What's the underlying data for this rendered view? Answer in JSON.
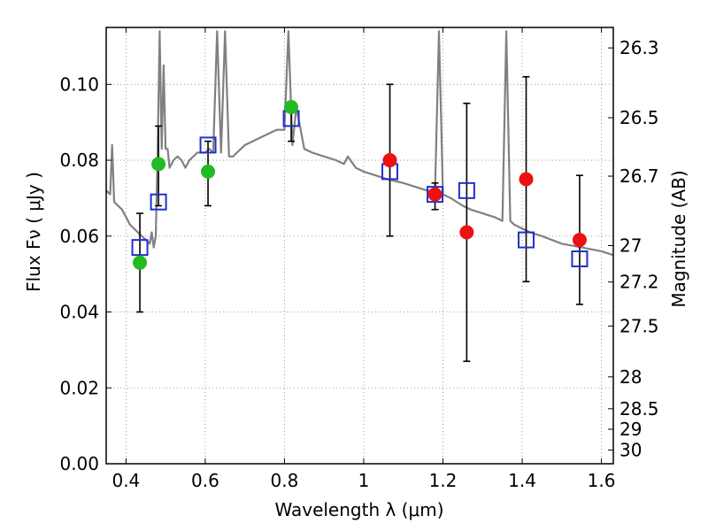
{
  "chart_data": {
    "type": "scatter",
    "xlabel": "Wavelength  λ (μm)",
    "ylabel": "Flux  Fν  ( μJy )",
    "y2label": "Magnitude (AB)",
    "xlim": [
      0.35,
      1.63
    ],
    "ylim": [
      0.0,
      0.115
    ],
    "grid": true,
    "x_ticks": [
      0.4,
      0.6,
      0.8,
      1.0,
      1.2,
      1.4,
      1.6
    ],
    "x_tick_labels": [
      "0.4",
      "0.6",
      "0.8",
      "1",
      "1.2",
      "1.4",
      "1.6"
    ],
    "y_ticks": [
      0.0,
      0.02,
      0.04,
      0.06,
      0.08,
      0.1
    ],
    "y_tick_labels": [
      "0.00",
      "0.02",
      "0.04",
      "0.06",
      "0.08",
      "0.10"
    ],
    "y2_ticks": [
      {
        "label": "26.3",
        "flux": 0.1096
      },
      {
        "label": "26.5",
        "flux": 0.0912
      },
      {
        "label": "26.7",
        "flux": 0.0758
      },
      {
        "label": "27",
        "flux": 0.0575
      },
      {
        "label": "27.2",
        "flux": 0.0479
      },
      {
        "label": "27.5",
        "flux": 0.0363
      },
      {
        "label": "28",
        "flux": 0.0229
      },
      {
        "label": "28.5",
        "flux": 0.0145
      },
      {
        "label": "29",
        "flux": 0.0091
      },
      {
        "label": "30",
        "flux": 0.0036
      }
    ],
    "colors": {
      "spectrum": "#808080",
      "green": "#22bb22",
      "red": "#ee1111",
      "model": "#1f2fcf",
      "errorbar": "#000000",
      "grid": "#888888"
    },
    "series": [
      {
        "name": "spectrum",
        "kind": "line",
        "x": [
          0.35,
          0.36,
          0.365,
          0.37,
          0.38,
          0.39,
          0.4,
          0.41,
          0.42,
          0.43,
          0.44,
          0.45,
          0.46,
          0.465,
          0.47,
          0.475,
          0.48,
          0.485,
          0.49,
          0.495,
          0.5,
          0.505,
          0.51,
          0.52,
          0.53,
          0.54,
          0.55,
          0.56,
          0.57,
          0.58,
          0.59,
          0.6,
          0.61,
          0.62,
          0.63,
          0.64,
          0.65,
          0.66,
          0.67,
          0.68,
          0.7,
          0.72,
          0.74,
          0.76,
          0.78,
          0.8,
          0.81,
          0.82,
          0.83,
          0.85,
          0.87,
          0.9,
          0.93,
          0.95,
          0.96,
          0.98,
          1.0,
          1.03,
          1.06,
          1.1,
          1.13,
          1.16,
          1.18,
          1.19,
          1.2,
          1.22,
          1.25,
          1.27,
          1.3,
          1.33,
          1.35,
          1.36,
          1.37,
          1.38,
          1.4,
          1.42,
          1.45,
          1.5,
          1.55,
          1.6,
          1.63
        ],
        "y": [
          0.072,
          0.071,
          0.084,
          0.069,
          0.068,
          0.067,
          0.065,
          0.063,
          0.062,
          0.061,
          0.06,
          0.059,
          0.058,
          0.061,
          0.057,
          0.06,
          0.083,
          0.114,
          0.083,
          0.105,
          0.083,
          0.083,
          0.078,
          0.08,
          0.081,
          0.08,
          0.078,
          0.08,
          0.081,
          0.082,
          0.082,
          0.082,
          0.083,
          0.082,
          0.114,
          0.082,
          0.114,
          0.081,
          0.081,
          0.082,
          0.084,
          0.085,
          0.086,
          0.087,
          0.088,
          0.088,
          0.114,
          0.084,
          0.094,
          0.083,
          0.082,
          0.081,
          0.08,
          0.079,
          0.081,
          0.078,
          0.077,
          0.076,
          0.075,
          0.074,
          0.073,
          0.072,
          0.072,
          0.114,
          0.071,
          0.07,
          0.068,
          0.067,
          0.066,
          0.065,
          0.064,
          0.114,
          0.064,
          0.063,
          0.062,
          0.061,
          0.06,
          0.058,
          0.057,
          0.056,
          0.055
        ]
      },
      {
        "name": "model",
        "kind": "open-square",
        "points": [
          [
            0.435,
            0.057
          ],
          [
            0.482,
            0.069
          ],
          [
            0.607,
            0.084
          ],
          [
            0.817,
            0.091
          ],
          [
            1.066,
            0.077
          ],
          [
            1.18,
            0.071
          ],
          [
            1.26,
            0.072
          ],
          [
            1.41,
            0.059
          ],
          [
            1.545,
            0.054
          ]
        ]
      },
      {
        "name": "observed-green",
        "kind": "filled-circle",
        "points": [
          {
            "x": 0.435,
            "y": 0.053,
            "ylo": 0.04,
            "yhi": 0.066
          },
          {
            "x": 0.482,
            "y": 0.079,
            "ylo": 0.068,
            "yhi": 0.089
          },
          {
            "x": 0.607,
            "y": 0.077,
            "ylo": 0.068,
            "yhi": 0.085
          },
          {
            "x": 0.817,
            "y": 0.094,
            "ylo": 0.085,
            "yhi": 0.095
          }
        ]
      },
      {
        "name": "observed-red",
        "kind": "filled-circle",
        "points": [
          {
            "x": 1.066,
            "y": 0.08,
            "ylo": 0.06,
            "yhi": 0.1
          },
          {
            "x": 1.18,
            "y": 0.071,
            "ylo": 0.067,
            "yhi": 0.074
          },
          {
            "x": 1.26,
            "y": 0.061,
            "ylo": 0.027,
            "yhi": 0.095
          },
          {
            "x": 1.41,
            "y": 0.075,
            "ylo": 0.048,
            "yhi": 0.102
          },
          {
            "x": 1.545,
            "y": 0.059,
            "ylo": 0.042,
            "yhi": 0.076
          }
        ]
      }
    ]
  }
}
